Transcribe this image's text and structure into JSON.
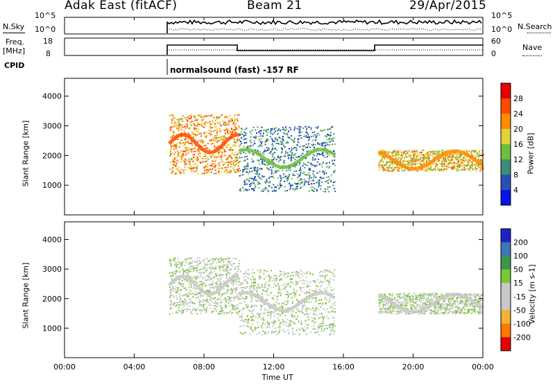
{
  "header": {
    "station": "Adak East (fitACF)",
    "beam": "Beam 21",
    "date": "29/Apr/2015"
  },
  "status_panel": {
    "nsky_label": "N.Sky",
    "nsearch_label": "N.Search",
    "nsky_ticks": [
      "10^5",
      "10^0"
    ],
    "nsearch_ticks": [
      "10^5",
      "10^0"
    ],
    "freq_label_top": "Freq.",
    "freq_label_bottom": "[MHz]",
    "freq_ticks": [
      "18",
      "8"
    ],
    "nave_label": "Nave",
    "nave_ticks": [
      "60",
      "0"
    ],
    "cpid_label": "CPID",
    "cpid_text": "normalsound (fast) -157 RF"
  },
  "colors": {
    "power_scale": [
      "#0a14e6",
      "#2850b4",
      "#3c8c78",
      "#6cbf3c",
      "#e1d23c",
      "#ff8c00",
      "#ff4a00",
      "#e60000"
    ],
    "velocity_scale": [
      "#e60000",
      "#ff7800",
      "#f0b432",
      "#c8c8c8",
      "#c8c8c8",
      "#78c832",
      "#3c9650",
      "#3c78b4",
      "#2020c8"
    ]
  },
  "chart_data": [
    {
      "type": "heatmap",
      "name": "power-panel",
      "ylabel": "Slant Range [km]",
      "xlabel": "",
      "yticks": [
        "1000",
        "2000",
        "3000",
        "4000"
      ],
      "ylim": [
        0,
        4600
      ],
      "colorbar": {
        "label": "Power [dB]",
        "ticks": [
          "4",
          "8",
          "12",
          "16",
          "20",
          "24",
          "28"
        ]
      },
      "bands": [
        {
          "time": [
            6.0,
            10.0
          ],
          "range": [
            1400,
            3400
          ],
          "value": 22
        },
        {
          "time": [
            10.0,
            15.5
          ],
          "range": [
            800,
            3000
          ],
          "value": 8
        },
        {
          "time": [
            18.0,
            24.0
          ],
          "range": [
            1500,
            2200
          ],
          "value": 20
        }
      ]
    },
    {
      "type": "heatmap",
      "name": "velocity-panel",
      "ylabel": "Slant Range [km]",
      "xlabel": "Time UT",
      "xticks": [
        "00:00",
        "04:00",
        "08:00",
        "12:00",
        "16:00",
        "20:00",
        "00:00"
      ],
      "yticks": [
        "1000",
        "2000",
        "3000",
        "4000"
      ],
      "ylim": [
        0,
        4600
      ],
      "colorbar": {
        "label": "Velocity [m s-1]",
        "ticks": [
          "200",
          "100",
          "50",
          "15",
          "-15",
          "-50",
          "-100",
          "-200"
        ]
      },
      "bands": [
        {
          "time": [
            6.0,
            10.0
          ],
          "range": [
            1500,
            3400
          ],
          "value": 0
        },
        {
          "time": [
            10.0,
            15.5
          ],
          "range": [
            800,
            3000
          ],
          "value": -20
        },
        {
          "time": [
            18.0,
            24.0
          ],
          "range": [
            1500,
            2200
          ],
          "value": 0
        }
      ]
    }
  ]
}
